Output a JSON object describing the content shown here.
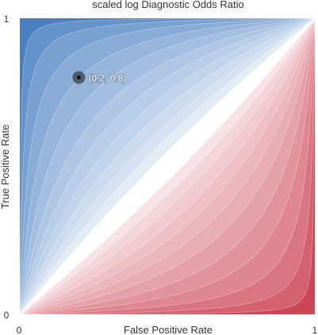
{
  "chart_data": {
    "type": "heatmap",
    "title": "scaled log Diagnostic Odds Ratio",
    "xlabel": "False Positive Rate",
    "ylabel": "True Positive Rate",
    "xlim": [
      0,
      1
    ],
    "ylim": [
      0,
      1
    ],
    "x_ticks": [
      "0",
      "1"
    ],
    "y_ticks": [
      "0",
      "1"
    ],
    "contour_levels": [
      -6,
      -4.5,
      -3.5,
      -2.75,
      -2.2,
      -1.75,
      -1.4,
      -1.1,
      -0.85,
      -0.6,
      -0.4,
      -0.2,
      0.2,
      0.4,
      0.6,
      0.85,
      1.1,
      1.4,
      1.75,
      2.2,
      2.75,
      3.5,
      4.5,
      6
    ],
    "colormap": {
      "negative": "#cc4655",
      "zero": "#ffffff",
      "positive": "#4a7fc1"
    },
    "marked_point": {
      "x": 0.2,
      "y": 0.8,
      "label": "(0.2, 0.8)"
    },
    "grid": false,
    "legend": false
  }
}
